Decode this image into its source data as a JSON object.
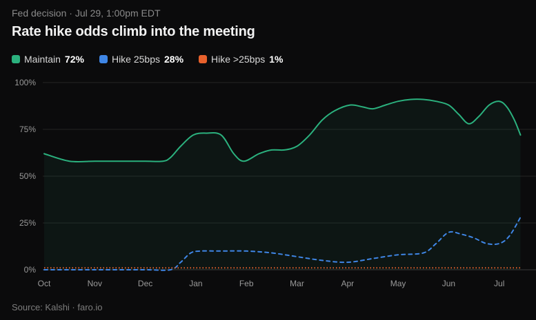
{
  "header": {
    "eyebrow": "Fed decision · Jul 29, 1:00pm EDT",
    "title": "Rate hike odds climb into the meeting"
  },
  "legend": [
    {
      "label": "Maintain",
      "value": "72%",
      "color": "#2bb17e"
    },
    {
      "label": "Hike 25bps",
      "value": "28%",
      "color": "#3f86e6"
    },
    {
      "label": "Hike >25bps",
      "value": "1%",
      "color": "#e8612c"
    }
  ],
  "footer": {
    "source": "Source: Kalshi · faro.io"
  },
  "chart_data": {
    "type": "line",
    "x_tick_labels": [
      "Oct",
      "Nov",
      "Dec",
      "Jan",
      "Feb",
      "Mar",
      "Apr",
      "May",
      "Jun",
      "Jul"
    ],
    "y_tick_labels": [
      "100%",
      "75%",
      "50%",
      "25%",
      "0%"
    ],
    "ylim": [
      0,
      100
    ],
    "grid": true,
    "legend_position": "top-left",
    "series": [
      {
        "name": "Maintain",
        "color": "#2bb17e",
        "style": "solid",
        "fill": true,
        "points": [
          [
            0,
            62
          ],
          [
            0.5,
            58
          ],
          [
            1,
            58
          ],
          [
            1.5,
            58
          ],
          [
            2,
            58
          ],
          [
            2.35,
            58
          ],
          [
            2.5,
            60
          ],
          [
            2.7,
            66
          ],
          [
            2.95,
            72
          ],
          [
            3.2,
            73
          ],
          [
            3.5,
            72
          ],
          [
            3.75,
            62
          ],
          [
            3.95,
            58
          ],
          [
            4.25,
            62
          ],
          [
            4.5,
            64
          ],
          [
            4.75,
            64
          ],
          [
            5,
            66
          ],
          [
            5.25,
            72
          ],
          [
            5.5,
            80
          ],
          [
            5.75,
            85
          ],
          [
            6.05,
            88
          ],
          [
            6.3,
            87
          ],
          [
            6.5,
            86
          ],
          [
            6.75,
            88
          ],
          [
            7,
            90
          ],
          [
            7.25,
            91
          ],
          [
            7.5,
            91
          ],
          [
            7.75,
            90
          ],
          [
            8,
            88
          ],
          [
            8.2,
            83
          ],
          [
            8.4,
            78
          ],
          [
            8.6,
            82
          ],
          [
            8.8,
            88
          ],
          [
            9,
            90
          ],
          [
            9.15,
            87
          ],
          [
            9.3,
            80
          ],
          [
            9.42,
            72
          ]
        ]
      },
      {
        "name": "Hike 25bps",
        "color": "#3f86e6",
        "style": "dashed",
        "fill": false,
        "points": [
          [
            0,
            0
          ],
          [
            1,
            0
          ],
          [
            2,
            0
          ],
          [
            2.5,
            0
          ],
          [
            2.7,
            4
          ],
          [
            2.9,
            9
          ],
          [
            3.1,
            10
          ],
          [
            3.5,
            10
          ],
          [
            4,
            10
          ],
          [
            4.5,
            9
          ],
          [
            5,
            7
          ],
          [
            5.5,
            5
          ],
          [
            6,
            4
          ],
          [
            6.5,
            6
          ],
          [
            7,
            8
          ],
          [
            7.5,
            9
          ],
          [
            7.75,
            14
          ],
          [
            8,
            20
          ],
          [
            8.25,
            19
          ],
          [
            8.5,
            17
          ],
          [
            8.75,
            14
          ],
          [
            9,
            14
          ],
          [
            9.2,
            18
          ],
          [
            9.42,
            28
          ]
        ]
      },
      {
        "name": "Hike >25bps",
        "color": "#e8612c",
        "style": "dotted",
        "fill": false,
        "points": [
          [
            0,
            1
          ],
          [
            9.42,
            1
          ]
        ]
      }
    ]
  }
}
